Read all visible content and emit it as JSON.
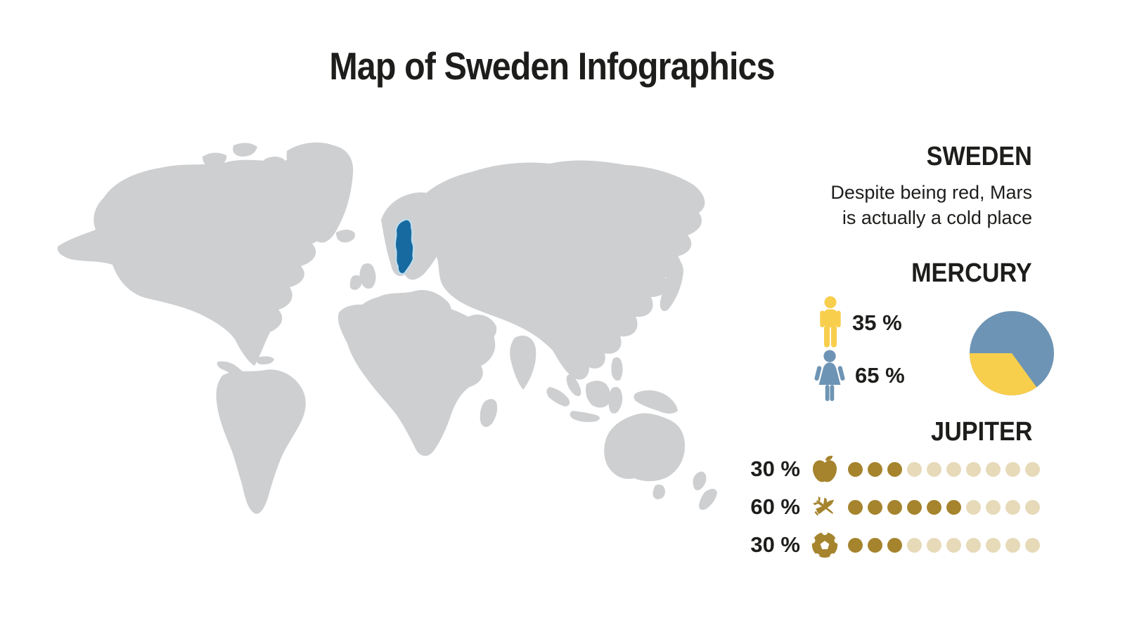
{
  "title": "Map of Sweden Infographics",
  "map": {
    "type": "world-map",
    "highlighted_country": "Sweden"
  },
  "sections": {
    "sweden": {
      "heading": "SWEDEN",
      "description_lines": [
        "Despite being red, Mars",
        "is actually a cold place"
      ]
    },
    "mercury": {
      "heading": "MERCURY",
      "male": {
        "label": "35 %",
        "value": 35
      },
      "female": {
        "label": "65 %",
        "value": 65
      }
    },
    "jupiter": {
      "heading": "JUPITER",
      "rows": [
        {
          "label": "30 %",
          "value": 30,
          "icon": "apple-icon",
          "dots_total": 10,
          "dots_filled": 3
        },
        {
          "label": "60 %",
          "value": 60,
          "icon": "plane-pencil-icon",
          "dots_total": 10,
          "dots_filled": 6
        },
        {
          "label": "30 %",
          "value": 30,
          "icon": "football-icon",
          "dots_total": 10,
          "dots_filled": 3
        }
      ]
    }
  },
  "colors": {
    "text": "#1d1d1b",
    "map_gray": "#cdcfd1",
    "sweden_blue": "#176a9f",
    "sweden_halo": "#bedcee",
    "yellow": "#f8ce4d",
    "steel_blue": "#6d94b4",
    "gold": "#a5842d",
    "gold_light": "#e7dab9"
  },
  "chart_data": [
    {
      "type": "pie",
      "title": "MERCURY",
      "legend_position": "left",
      "series": [
        {
          "name": "male",
          "value": 35,
          "color": "#f8ce4d"
        },
        {
          "name": "female",
          "value": 65,
          "color": "#6d94b4"
        }
      ]
    },
    {
      "type": "bar",
      "subtype": "pictograph-dots",
      "title": "JUPITER",
      "categories": [
        "apple",
        "travel",
        "football"
      ],
      "values": [
        30,
        60,
        30
      ],
      "dots_per_row": 10,
      "dots_filled": [
        3,
        6,
        3
      ],
      "value_labels": [
        "30 %",
        "60 %",
        "30 %"
      ]
    }
  ]
}
